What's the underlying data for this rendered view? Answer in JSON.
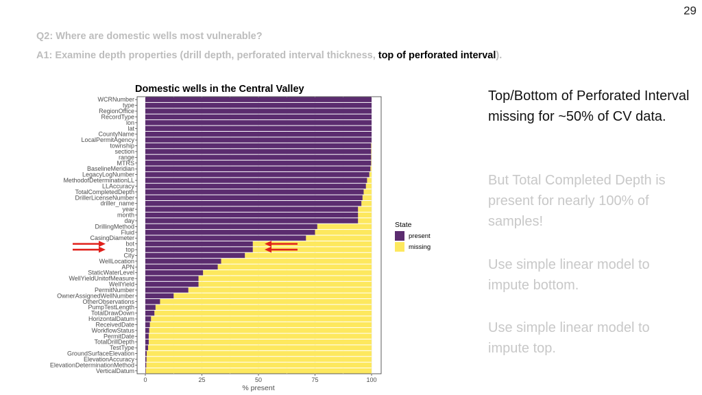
{
  "slide": {
    "number": "29",
    "question": "Q2: Where are domestic wells most vulnerable?",
    "answer_prefix": "A1: Examine depth properties (drill depth, perforated interval thickness, ",
    "answer_highlight": "top of perforated interval",
    "answer_suffix": ")."
  },
  "side_text": {
    "p1": "Top/Bottom of Perforated Interval missing for ~50% of CV data.",
    "p2": "But Total Completed Depth is present for nearly 100% of samples!",
    "p3": "Use simple linear model to impute bottom.",
    "p4": "Use simple linear model to impute top."
  },
  "chart_data": {
    "type": "bar",
    "orientation": "horizontal",
    "stacked": true,
    "title": "Domestic wells in the Central Valley",
    "xlabel": "% present",
    "ylabel": "",
    "xlim": [
      0,
      100
    ],
    "x_ticks": [
      "0",
      "25",
      "50",
      "75",
      "100"
    ],
    "grid": true,
    "legend": {
      "title": "State",
      "position": "right",
      "entries": [
        "present",
        "missing"
      ]
    },
    "colors": {
      "present": "#5b2c6f",
      "missing": "#fde85e",
      "arrow": "#e0201b"
    },
    "categories": [
      "WCRNumber",
      "type",
      "RegionOffice",
      "RecordType",
      "lon",
      "lat",
      "CountyName",
      "LocalPermitAgency",
      "township",
      "section",
      "range",
      "MTRS",
      "BaselineMeridian",
      "LegacyLogNumber",
      "MethodofDeterminationLL",
      "LLAccuracy",
      "TotalCompletedDepth",
      "DrillerLicenseNumber",
      "driller_name",
      "year",
      "month",
      "day",
      "DrillingMethod",
      "Fluid",
      "CasingDiameter",
      "bot",
      "top",
      "City",
      "WellLocation",
      "APN",
      "StaticWaterLevel",
      "WellYieldUnitofMeasure",
      "WellYield",
      "PermitNumber",
      "OwnerAssignedWellNumber",
      "OtherObservations",
      "PumpTestLength",
      "TotalDrawDown",
      "HorizontalDatum",
      "ReceivedDate",
      "WorkflowStatus",
      "PermitDate",
      "TotalDrillDepth",
      "TestType",
      "GroundSurfaceElevation",
      "ElevationAccuracy",
      "ElevationDeterminationMethod",
      "VerticalDatum"
    ],
    "series": [
      {
        "name": "present",
        "values": [
          100,
          100,
          100,
          100,
          100,
          100,
          100,
          100,
          99.8,
          99.8,
          99.8,
          99.8,
          99.5,
          99,
          98,
          97.5,
          96.5,
          96,
          95.5,
          94,
          94,
          94,
          76,
          75,
          71,
          47.5,
          47.5,
          44,
          33.5,
          32,
          25.5,
          23.5,
          23.5,
          19,
          12.5,
          6.5,
          4.5,
          4,
          2.5,
          2,
          1.7,
          1.5,
          1.5,
          1.2,
          0.6,
          0.5,
          0.4,
          0.2
        ]
      },
      {
        "name": "missing",
        "values": [
          0,
          0,
          0,
          0,
          0,
          0,
          0,
          0,
          0.2,
          0.2,
          0.2,
          0.2,
          0.5,
          1,
          2,
          2.5,
          3.5,
          4,
          4.5,
          6,
          6,
          6,
          24,
          25,
          29,
          52.5,
          52.5,
          56,
          66.5,
          68,
          74.5,
          76.5,
          76.5,
          81,
          87.5,
          93.5,
          95.5,
          96,
          97.5,
          98,
          98.3,
          98.5,
          98.5,
          98.8,
          99.4,
          99.5,
          99.6,
          99.8
        ]
      }
    ],
    "annotations": [
      {
        "type": "arrow",
        "target": "bot",
        "side": "left"
      },
      {
        "type": "arrow",
        "target": "top",
        "side": "left"
      },
      {
        "type": "arrow",
        "target": "bot",
        "side": "inside"
      },
      {
        "type": "arrow",
        "target": "top",
        "side": "inside"
      }
    ]
  }
}
